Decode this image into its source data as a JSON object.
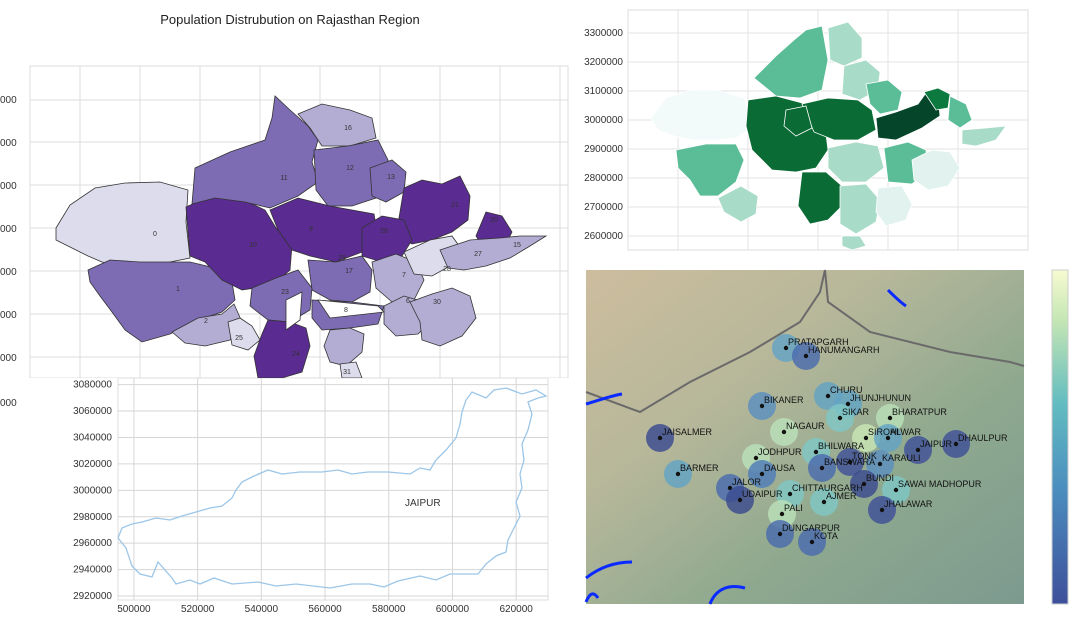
{
  "chart_data": [
    {
      "type": "choropleth",
      "title": "Population Distrubution on Rajasthan Region",
      "colormap": "Purples",
      "y_ticks": [
        "000",
        "000",
        "000",
        "000",
        "000",
        "000",
        "000",
        "000"
      ],
      "region_labels": [
        "0",
        "1",
        "2",
        "6",
        "7",
        "8",
        "9",
        "10",
        "11",
        "12",
        "13",
        "15",
        "16",
        "17",
        "20",
        "21",
        "23",
        "24",
        "25",
        "26",
        "27",
        "28",
        "29",
        "30",
        "31"
      ],
      "grid": true
    },
    {
      "type": "choropleth",
      "colormap": "Greens",
      "y_ticks": [
        "3300000",
        "3200000",
        "3100000",
        "3000000",
        "2900000",
        "2800000",
        "2700000",
        "2600000"
      ],
      "grid": true
    },
    {
      "type": "line",
      "annotation": "JAIPUR",
      "x_ticks": [
        "500000",
        "520000",
        "540000",
        "560000",
        "580000",
        "600000",
        "620000"
      ],
      "y_ticks": [
        "3080000",
        "3060000",
        "3040000",
        "3020000",
        "3000000",
        "2980000",
        "2960000",
        "2940000",
        "2920000"
      ],
      "xlim": [
        495000,
        630000
      ],
      "ylim": [
        2917000,
        3085000
      ],
      "grid": true
    },
    {
      "type": "scatter",
      "basemap": "shaded relief",
      "colormap": "YlGnBu",
      "cities": [
        "PRATAPGARH",
        "HANUMANGARH",
        "CHURU",
        "JHUNJHUNUN",
        "BIKANER",
        "SIKAR",
        "BHARATPUR",
        "NAGAUR",
        "SIROHI",
        "ALWAR",
        "DHAULPUR",
        "JAISALMER",
        "JAIPUR",
        "BHILWARA",
        "JODHPUR",
        "TONK",
        "KARAULI",
        "DAUSA",
        "BANSWARA",
        "BARMER",
        "BUNDI",
        "JALOR",
        "SAWAI MADHOPUR",
        "UDAIPUR",
        "CHITTAURGARH",
        "AJMER",
        "PALI",
        "JHALAWAR",
        "DUNGARPUR",
        "KOTA"
      ],
      "colorbar": true
    }
  ],
  "colors": {
    "purple_dark": "#5a2b91",
    "purple_mid": "#7d6cb3",
    "purple_light": "#b3add4",
    "purple_pale": "#dcdcec",
    "green_dark": "#0b6b35",
    "green_mid": "#5bbd97",
    "green_light": "#a8dbc8",
    "marker_blue": "#4a6bae",
    "marker_teal": "#63a3c4"
  }
}
